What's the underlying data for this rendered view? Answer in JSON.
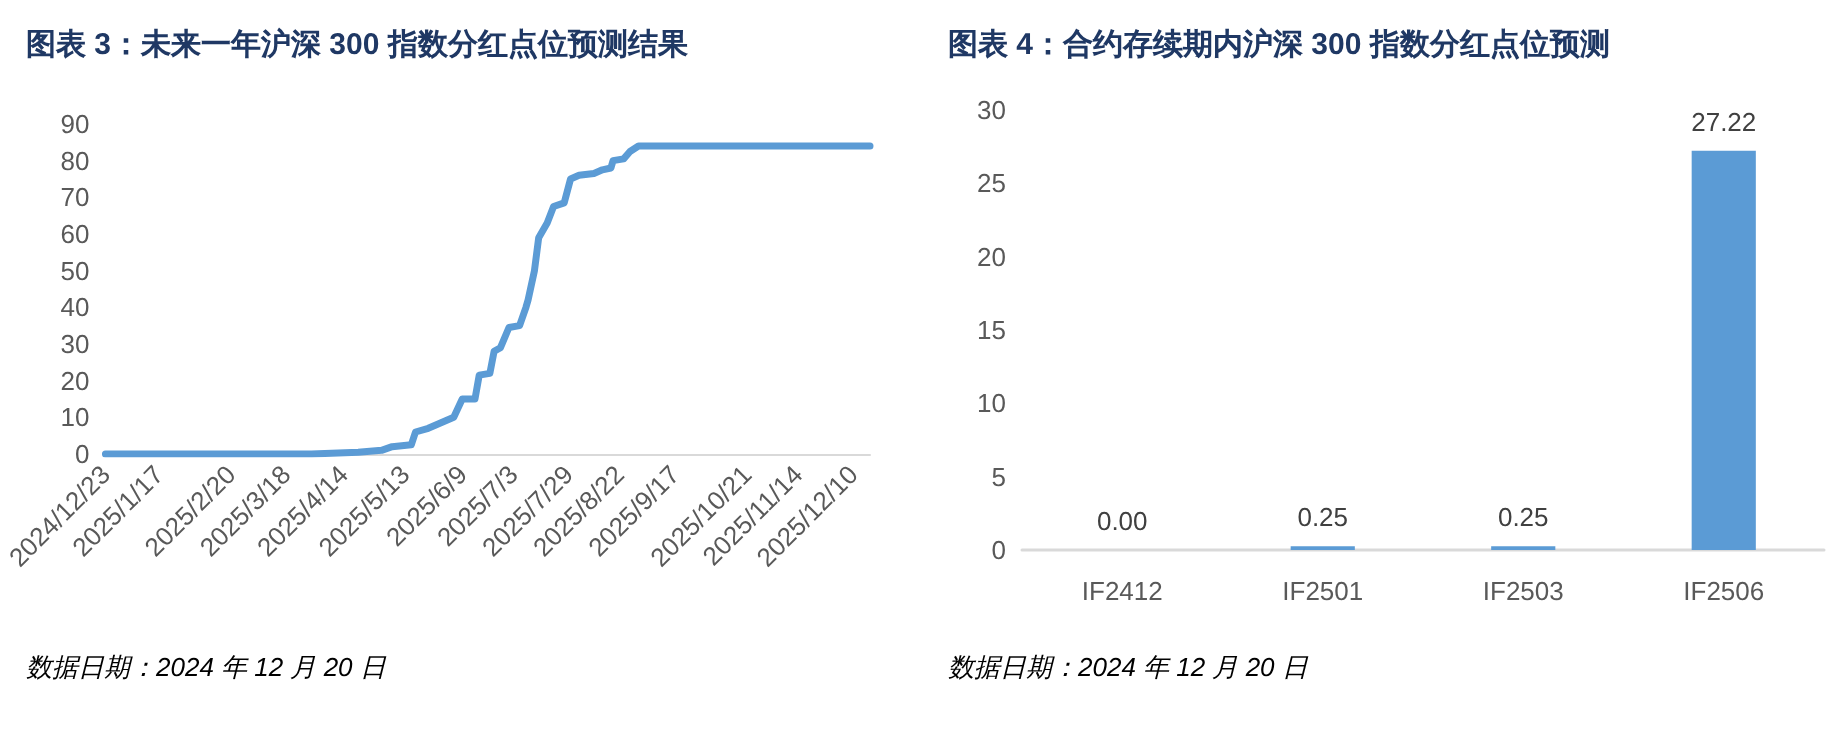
{
  "chart_data": [
    {
      "type": "line",
      "title": "图表 3：未来一年沪深 300 指数分红点位预测结果",
      "annotations": [
        "数据日期：2024 年 12 月 20 日"
      ],
      "x": [
        "2024-12-23",
        "2025-03-30",
        "2025-04-21",
        "2025-05-02",
        "2025-05-07",
        "2025-05-16",
        "2025-05-18",
        "2025-05-24",
        "2025-05-30",
        "2025-06-05",
        "2025-06-09",
        "2025-06-15",
        "2025-06-17",
        "2025-06-22",
        "2025-06-24",
        "2025-06-27",
        "2025-07-01",
        "2025-07-06",
        "2025-07-09",
        "2025-07-10",
        "2025-07-13",
        "2025-07-15",
        "2025-07-19",
        "2025-07-22",
        "2025-07-27",
        "2025-07-30",
        "2025-08-03",
        "2025-08-10",
        "2025-08-14",
        "2025-08-18",
        "2025-08-19",
        "2025-08-24",
        "2025-08-27",
        "2025-08-31",
        "2025-12-18"
      ],
      "series": [
        {
          "color": "#5b9bd5",
          "values": [
            0,
            0,
            0.5,
            1,
            2,
            2.5,
            6,
            7,
            8.5,
            10,
            15,
            15,
            21.5,
            22,
            28,
            29,
            34.5,
            35,
            40,
            42,
            50,
            59,
            63,
            67.5,
            68.5,
            75,
            76,
            76.5,
            77.5,
            78,
            80,
            80.5,
            82.5,
            84,
            84
          ]
        }
      ],
      "xlim": [
        "2024-12-23",
        "2025-12-18"
      ],
      "xticks": [
        {
          "value": "2024-12-23",
          "label": "2024/12/23"
        },
        {
          "value": "2025-01-17",
          "label": "2025/1/17"
        },
        {
          "value": "2025-02-20",
          "label": "2025/2/20"
        },
        {
          "value": "2025-03-18",
          "label": "2025/3/18"
        },
        {
          "value": "2025-04-14",
          "label": "2025/4/14"
        },
        {
          "value": "2025-05-13",
          "label": "2025/5/13"
        },
        {
          "value": "2025-06-09",
          "label": "2025/6/9"
        },
        {
          "value": "2025-07-03",
          "label": "2025/7/3"
        },
        {
          "value": "2025-07-29",
          "label": "2025/7/29"
        },
        {
          "value": "2025-08-22",
          "label": "2025/8/22"
        },
        {
          "value": "2025-09-17",
          "label": "2025/9/17"
        },
        {
          "value": "2025-10-21",
          "label": "2025/10/21"
        },
        {
          "value": "2025-11-14",
          "label": "2025/11/14"
        },
        {
          "value": "2025-12-10",
          "label": "2025/12/10"
        }
      ],
      "ylim": [
        0,
        90
      ],
      "yticks": [
        0,
        10,
        20,
        30,
        40,
        50,
        60,
        70,
        80,
        90
      ],
      "grid": false,
      "marker": "none",
      "line_style": "solid"
    },
    {
      "type": "bar",
      "title": "图表 4：合约存续期内沪深 300 指数分红点位预测",
      "annotations": [
        "数据日期：2024 年 12 月 20 日"
      ],
      "categories": [
        "IF2412",
        "IF2501",
        "IF2503",
        "IF2506"
      ],
      "values": [
        0,
        0.25,
        0.25,
        27.22
      ],
      "value_labels": [
        "0.00",
        "0.25",
        "0.25",
        "27.22"
      ],
      "color": "#5b9bd5",
      "ylim": [
        0,
        30
      ],
      "yticks": [
        0,
        5,
        10,
        15,
        20,
        25,
        30
      ],
      "grid": false
    }
  ]
}
